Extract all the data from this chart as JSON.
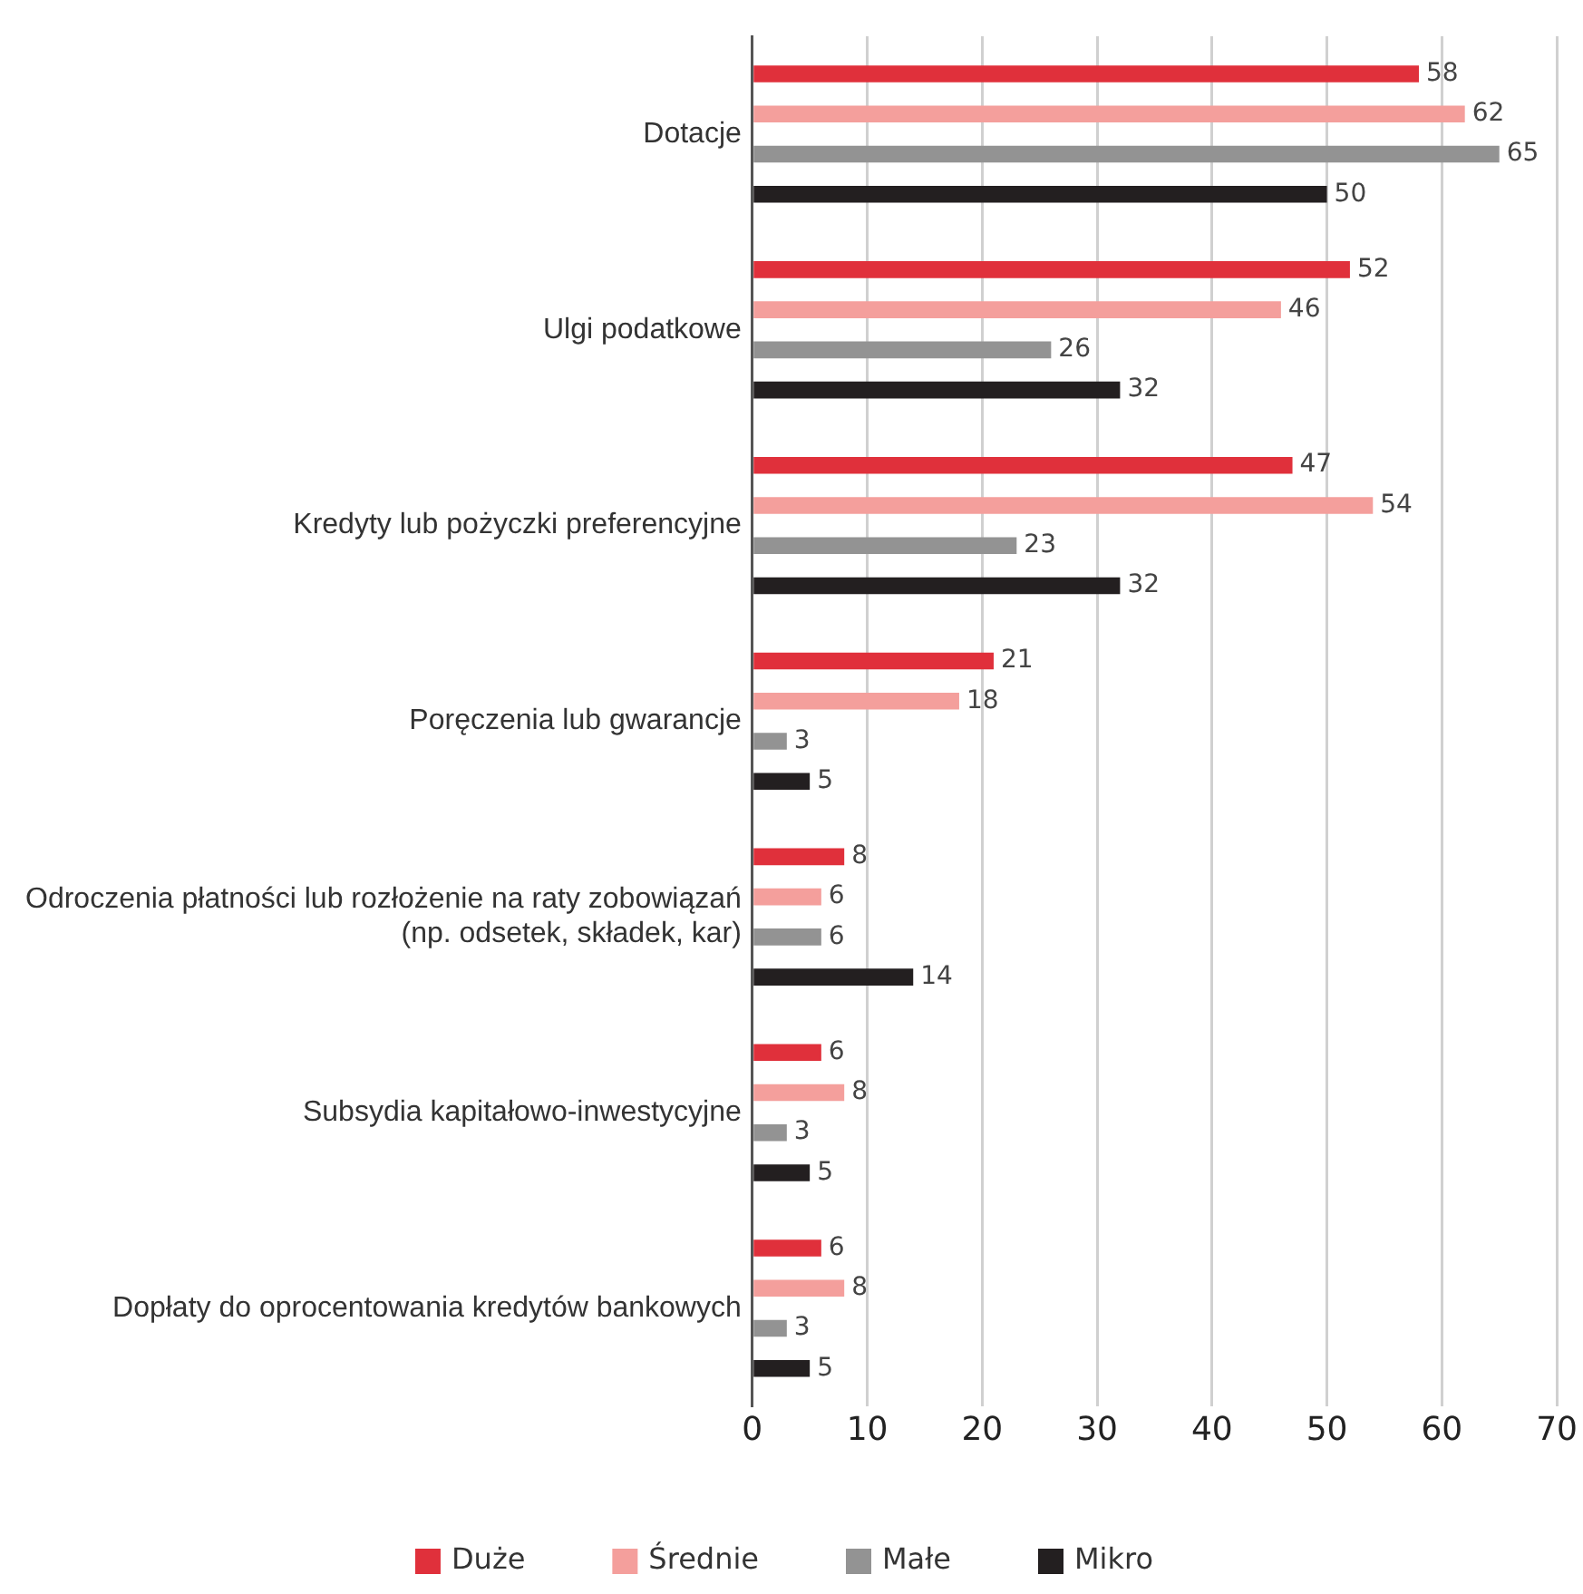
{
  "chart_data": {
    "type": "bar",
    "orientation": "horizontal",
    "categories": [
      "Dotacje",
      "Ulgi podatkowe",
      "Kredyty lub pożyczki preferencyjne",
      "Poręczenia lub gwarancje",
      "Odroczenia płatności lub rozłożenie na raty zobowiązań (np. odsetek, składek, kar)",
      "Subsydia kapitałowo-inwestycyjne",
      "Dopłaty do oprocentowania kredytów bankowych"
    ],
    "series": [
      {
        "name": "Duże",
        "color": "#e0303b",
        "values": [
          58,
          52,
          47,
          21,
          8,
          6,
          6
        ]
      },
      {
        "name": "Średnie",
        "color": "#f49f9c",
        "values": [
          62,
          46,
          54,
          18,
          6,
          8,
          8
        ]
      },
      {
        "name": "Małe",
        "color": "#939393",
        "values": [
          65,
          26,
          23,
          3,
          6,
          3,
          3
        ]
      },
      {
        "name": "Mikro",
        "color": "#231f20",
        "values": [
          50,
          32,
          32,
          5,
          14,
          5,
          5
        ]
      }
    ],
    "xlim": [
      0,
      70
    ],
    "xticks": [
      0,
      10,
      20,
      30,
      40,
      50,
      60,
      70
    ],
    "grid": "x",
    "legend": "bottom",
    "data_labels": true
  }
}
